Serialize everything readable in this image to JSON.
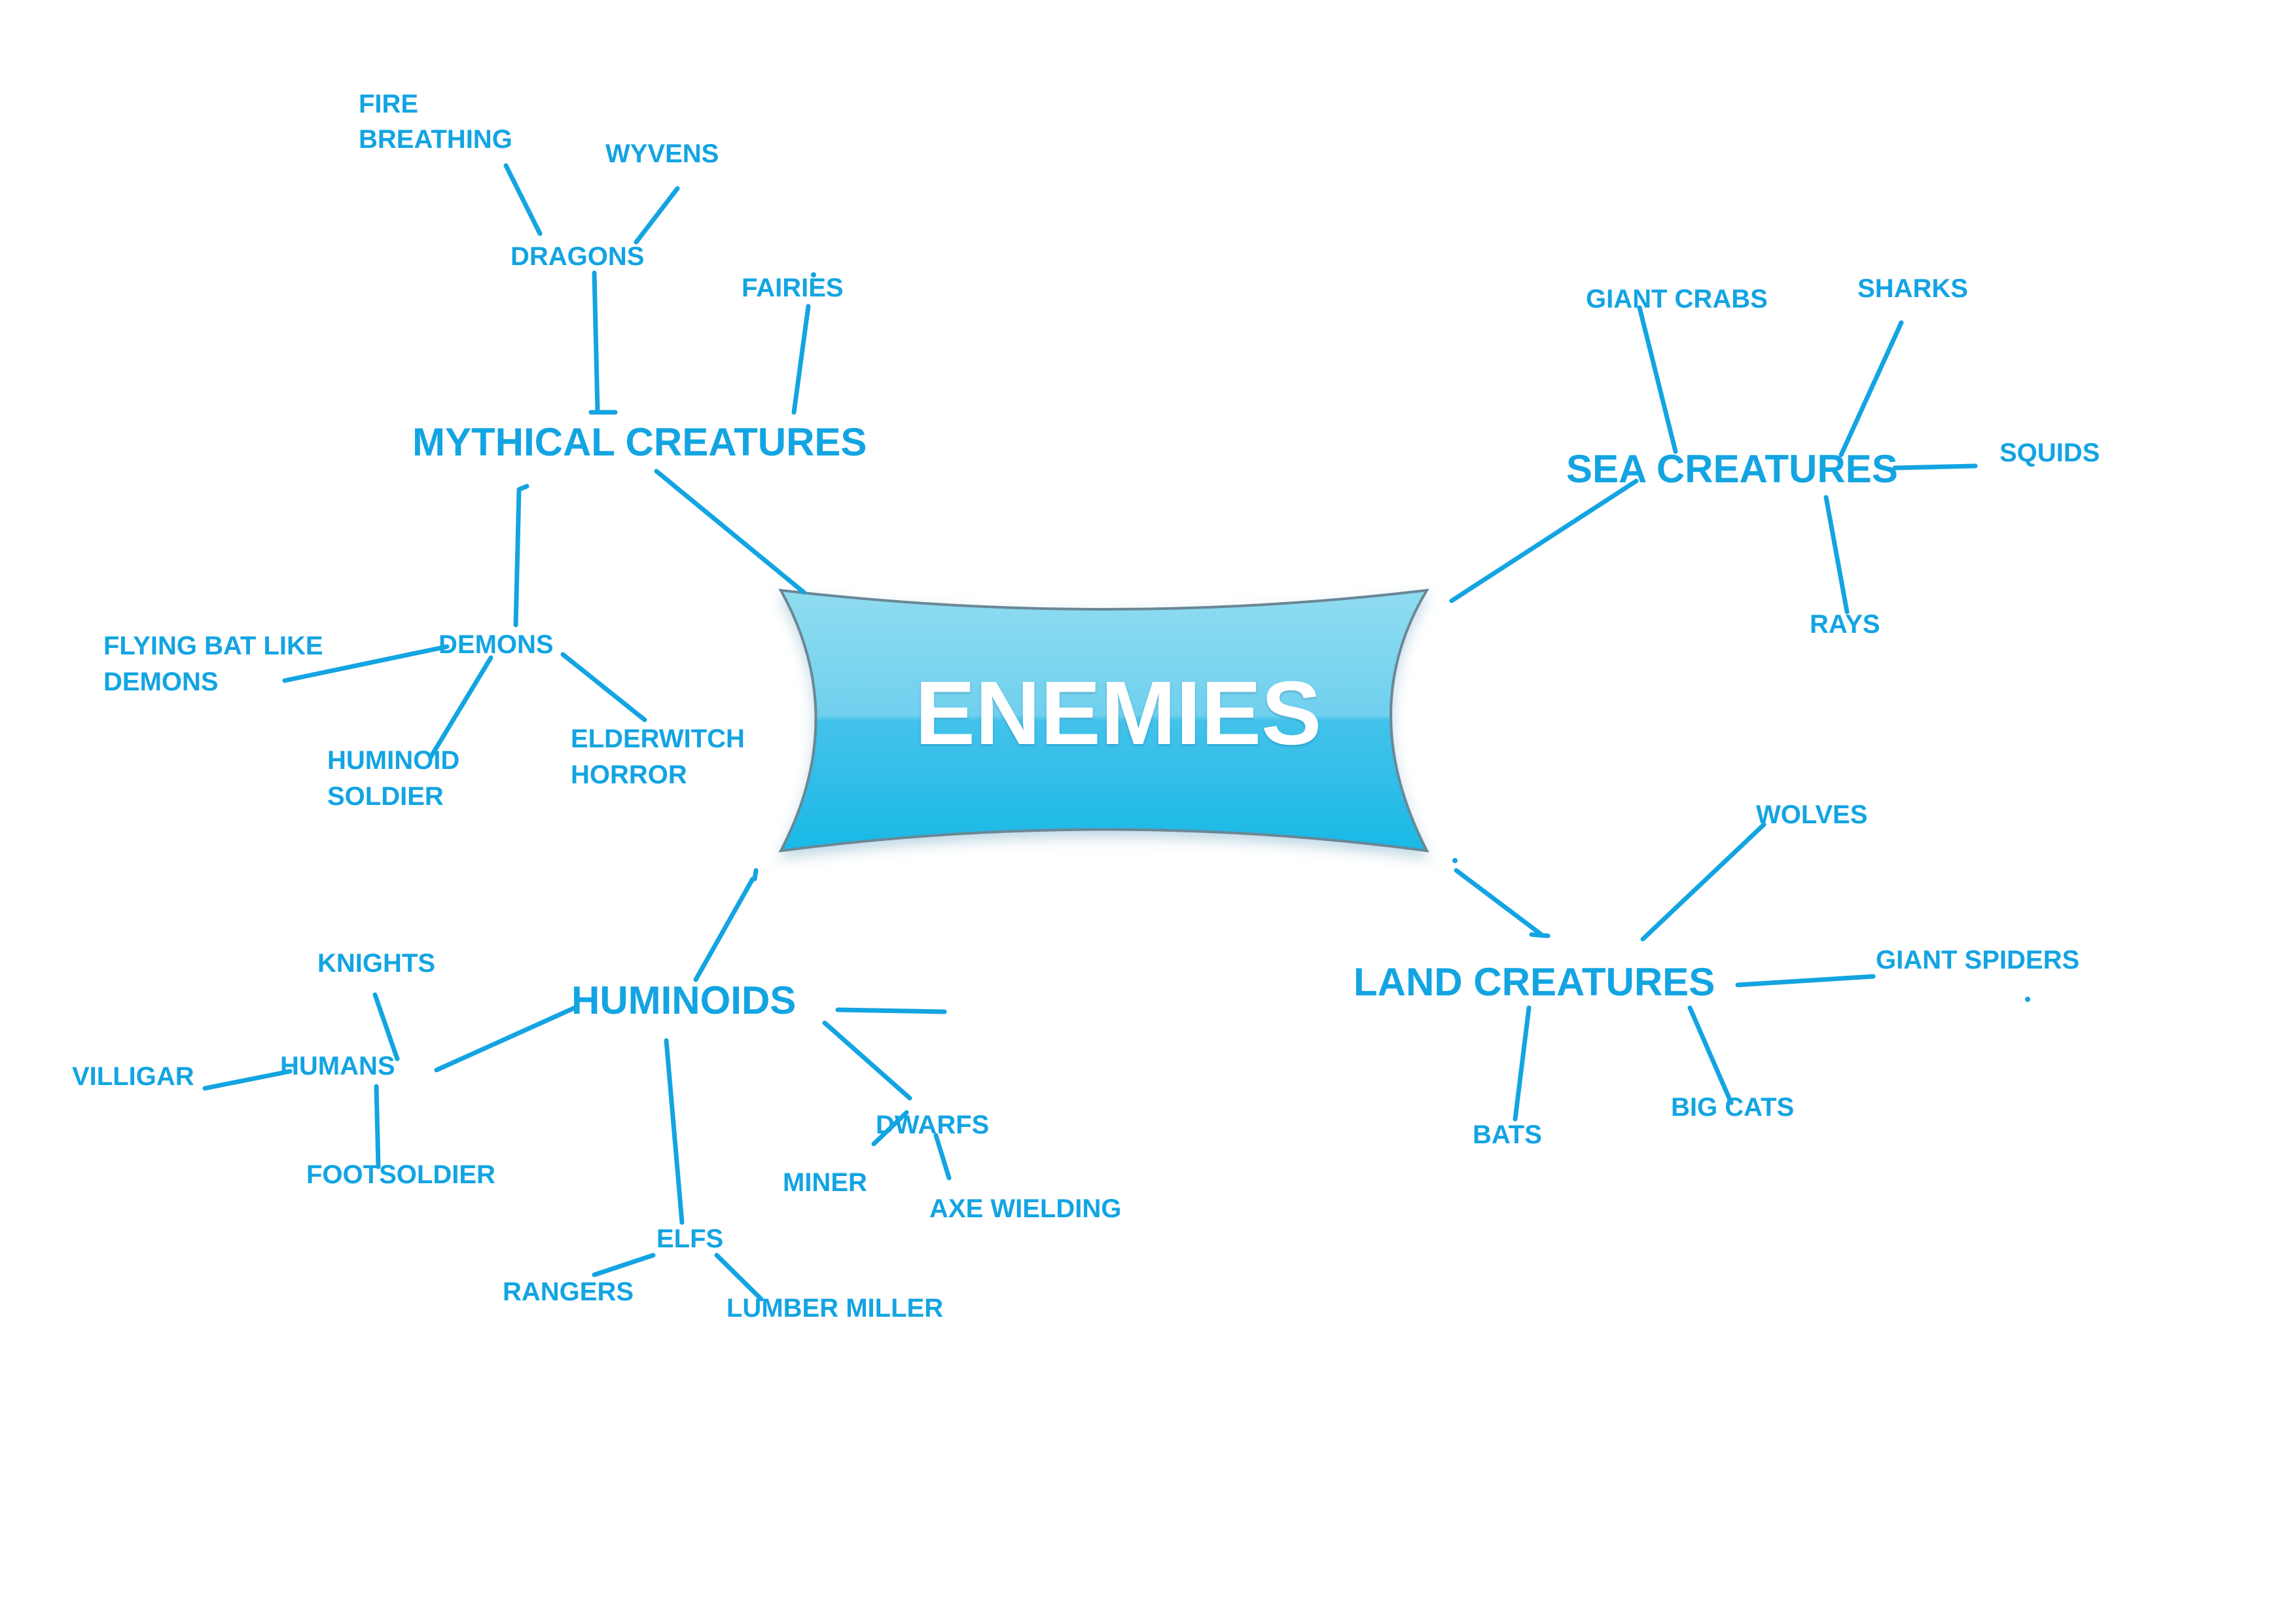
{
  "center": {
    "title": "ENEMIES"
  },
  "mythical": {
    "title": "MYTHICAL CREATURES",
    "dragons": {
      "label": "DRAGONS",
      "fire_breathing_1": "FIRE",
      "fire_breathing_2": "BREATHING",
      "wyvens": "WYVENS"
    },
    "fairies": "FAIRIES",
    "demons": {
      "label": "DEMONS",
      "flying_bat_1": "FLYING BAT LIKE",
      "flying_bat_2": "DEMONS",
      "huminoid_soldier_1": "HUMINOID",
      "huminoid_soldier_2": "SOLDIER",
      "elderwitch_horror_1": "ELDERWITCH",
      "elderwitch_horror_2": "HORROR"
    }
  },
  "sea": {
    "title": "SEA CREATURES",
    "giant_crabs": "GIANT CRABS",
    "sharks": "SHARKS",
    "squids": "SQUIDS",
    "rays": "RAYS"
  },
  "land": {
    "title": "LAND CREATURES",
    "wolves": "WOLVES",
    "giant_spiders": "GIANT SPIDERS",
    "big_cats": "BIG CATS",
    "bats": "BATS"
  },
  "huminoids": {
    "title": "HUMINOIDS",
    "humans": {
      "label": "HUMANS",
      "knights": "KNIGHTS",
      "villigar": "VILLIGAR",
      "footsoldier": "FOOTSOLDIER"
    },
    "dwarfs": {
      "label": "DWARFS",
      "miner": "MINER",
      "axe_wielding": "AXE WIELDING"
    },
    "elfs": {
      "label": "ELFS",
      "rangers": "RANGERS",
      "lumber_miller": "LUMBER MILLER"
    }
  },
  "colors": {
    "accent": "#13a4e2",
    "banner_top": "#8fdcf0",
    "banner_bottom": "#1ab9e6",
    "background": "#ffffff"
  }
}
